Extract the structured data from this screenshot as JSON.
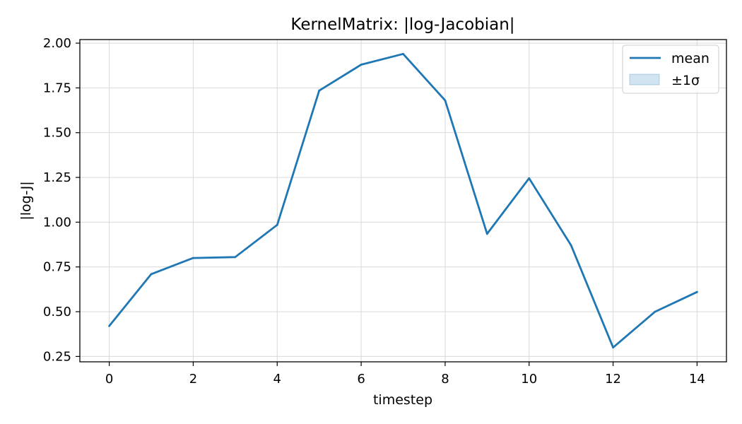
{
  "chart_data": {
    "type": "line",
    "title": "KernelMatrix: |log-Jacobian|",
    "xlabel": "timestep",
    "ylabel": "|log-J|",
    "xlim": [
      -0.7,
      14.7
    ],
    "ylim": [
      0.22,
      2.02
    ],
    "xticks": [
      0,
      2,
      4,
      6,
      8,
      10,
      12,
      14
    ],
    "xtick_labels": [
      "0",
      "2",
      "4",
      "6",
      "8",
      "10",
      "12",
      "14"
    ],
    "yticks": [
      0.25,
      0.5,
      0.75,
      1.0,
      1.25,
      1.5,
      1.75,
      2.0
    ],
    "ytick_labels": [
      "0.25",
      "0.50",
      "0.75",
      "1.00",
      "1.25",
      "1.50",
      "1.75",
      "2.00"
    ],
    "grid": true,
    "legend_position": "top-right",
    "series": [
      {
        "name": "mean",
        "x": [
          0,
          1,
          2,
          3,
          4,
          5,
          6,
          7,
          8,
          9,
          10,
          11,
          12,
          13,
          14
        ],
        "values": [
          0.42,
          0.71,
          0.8,
          0.805,
          0.985,
          1.735,
          1.88,
          1.94,
          1.68,
          0.935,
          1.245,
          0.87,
          0.3,
          0.5,
          0.61
        ],
        "color": "#1f77b4"
      }
    ],
    "band": {
      "name": "±1σ",
      "fill_color": "#1f77b4",
      "fill_opacity": 0.2
    }
  }
}
